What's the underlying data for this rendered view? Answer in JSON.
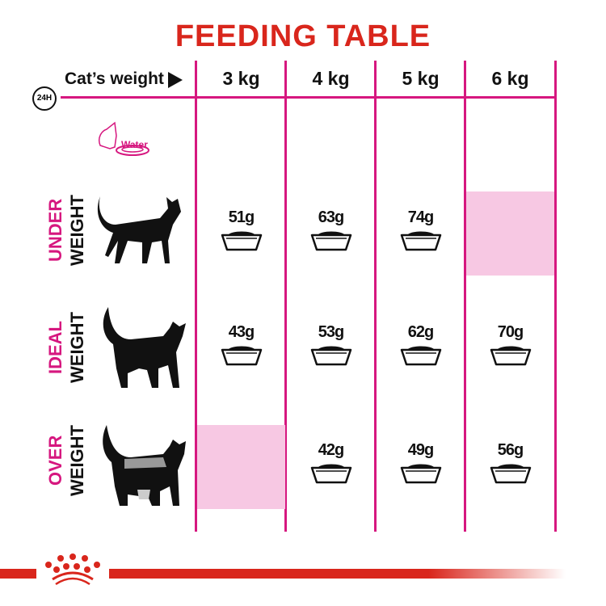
{
  "title": "FEEDING TABLE",
  "header": {
    "clock_label": "24H",
    "cats_weight_label": "Cat’s weight",
    "columns": [
      "3 kg",
      "4 kg",
      "5 kg",
      "6 kg"
    ]
  },
  "water_label": "Water",
  "rows": [
    {
      "label_top": "UNDER",
      "label_bottom": "WEIGHT",
      "values": [
        "51g",
        "63g",
        "74g",
        null
      ]
    },
    {
      "label_top": "IDEAL",
      "label_bottom": "WEIGHT",
      "values": [
        "43g",
        "53g",
        "62g",
        "70g"
      ]
    },
    {
      "label_top": "OVER",
      "label_bottom": "WEIGHT",
      "values": [
        null,
        "42g",
        "49g",
        "56g"
      ]
    }
  ],
  "colors": {
    "title": "#d9261c",
    "accent": "#d6177f",
    "empty_cell": "#f7c8e3"
  },
  "logo": "royal-canin-crown"
}
